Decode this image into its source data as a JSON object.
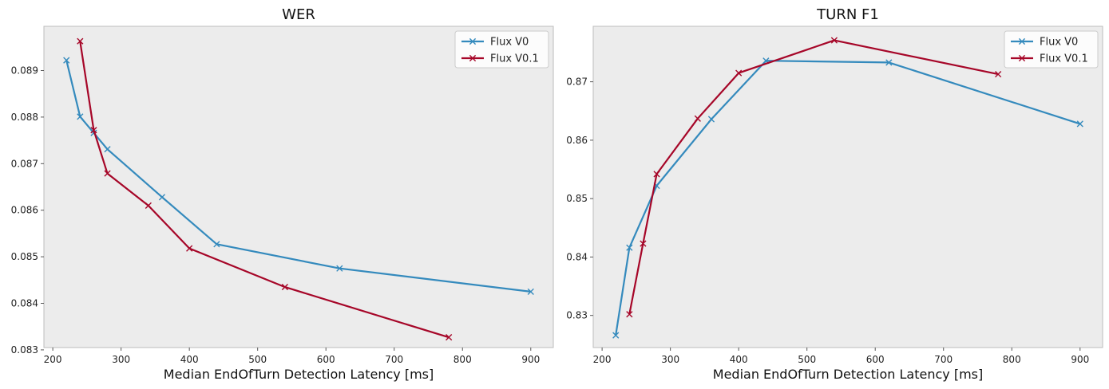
{
  "chart_data": [
    {
      "type": "line",
      "title": "WER",
      "xlabel": "Median EndOfTurn Detection Latency [ms]",
      "ylabel": "",
      "xlim": [
        187,
        933
      ],
      "ylim": [
        0.08305,
        0.08995
      ],
      "xticks": [
        200,
        300,
        400,
        500,
        600,
        700,
        800,
        900
      ],
      "xtick_labels": [
        "200",
        "300",
        "400",
        "500",
        "600",
        "700",
        "800",
        "900"
      ],
      "yticks": [
        0.083,
        0.084,
        0.085,
        0.086,
        0.087,
        0.088,
        0.089
      ],
      "ytick_labels": [
        "0.083",
        "0.084",
        "0.085",
        "0.086",
        "0.087",
        "0.088",
        "0.089"
      ],
      "legend_position": "top-right",
      "series": [
        {
          "name": "Flux V0",
          "color": "#348abd",
          "x": [
            220,
            240,
            260,
            280,
            360,
            440,
            620,
            900
          ],
          "y": [
            0.08922,
            0.08801,
            0.08766,
            0.08731,
            0.08628,
            0.08527,
            0.08475,
            0.08425
          ]
        },
        {
          "name": "Flux V0.1",
          "color": "#a60628",
          "x": [
            240,
            260,
            280,
            340,
            400,
            540,
            780
          ],
          "y": [
            0.08963,
            0.08772,
            0.08679,
            0.0861,
            0.08518,
            0.08435,
            0.08327
          ]
        }
      ]
    },
    {
      "type": "line",
      "title": "TURN F1",
      "xlabel": "Median EndOfTurn Detection Latency [ms]",
      "ylabel": "",
      "xlim": [
        187,
        933
      ],
      "ylim": [
        0.8245,
        0.8795
      ],
      "xticks": [
        200,
        300,
        400,
        500,
        600,
        700,
        800,
        900
      ],
      "xtick_labels": [
        "200",
        "300",
        "400",
        "500",
        "600",
        "700",
        "800",
        "900"
      ],
      "yticks": [
        0.83,
        0.84,
        0.85,
        0.86,
        0.87
      ],
      "ytick_labels": [
        "0.83",
        "0.84",
        "0.85",
        "0.86",
        "0.87"
      ],
      "legend_position": "top-right",
      "series": [
        {
          "name": "Flux V0",
          "color": "#348abd",
          "x": [
            220,
            240,
            280,
            360,
            440,
            620,
            900
          ],
          "y": [
            0.8266,
            0.8416,
            0.8522,
            0.8636,
            0.8736,
            0.8733,
            0.8628
          ]
        },
        {
          "name": "Flux V0.1",
          "color": "#a60628",
          "x": [
            240,
            260,
            280,
            340,
            400,
            540,
            780
          ],
          "y": [
            0.8302,
            0.8423,
            0.8542,
            0.8637,
            0.8715,
            0.8771,
            0.8713
          ]
        }
      ]
    }
  ]
}
